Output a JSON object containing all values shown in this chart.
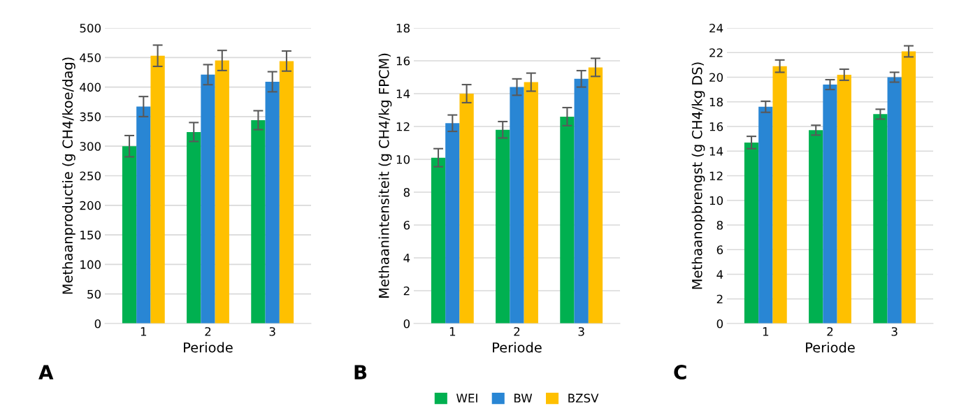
{
  "chart_data": [
    {
      "type": "bar",
      "xlabel": "Periode",
      "ylabel": "Methaanproductie (g CH4/koe/dag)",
      "categories": [
        "1",
        "2",
        "3"
      ],
      "ylim": [
        0,
        500
      ],
      "yticks": [
        0,
        50,
        100,
        150,
        200,
        250,
        300,
        350,
        400,
        450,
        500
      ],
      "grid": "y",
      "annotations": [
        "A"
      ],
      "series": [
        {
          "color": "#00b050",
          "values": [
            300,
            324,
            344
          ],
          "errors": [
            18,
            16,
            16
          ]
        },
        {
          "color": "#2986d4",
          "values": [
            367,
            421,
            409
          ],
          "errors": [
            17,
            17,
            17
          ]
        },
        {
          "color": "#ffc000",
          "values": [
            453,
            445,
            444
          ],
          "errors": [
            18,
            17,
            17
          ]
        }
      ]
    },
    {
      "type": "bar",
      "xlabel": "Periode",
      "ylabel": "Methaanintensiteit (g CH4/kg FPCM)",
      "categories": [
        "1",
        "2",
        "3"
      ],
      "ylim": [
        0,
        18
      ],
      "yticks": [
        0,
        2,
        4,
        6,
        8,
        10,
        12,
        14,
        16,
        18
      ],
      "grid": "y",
      "legend": "bottom",
      "annotations": [
        "B"
      ],
      "series": [
        {
          "name": "WEI",
          "color": "#00b050",
          "values": [
            10.1,
            11.8,
            12.6
          ],
          "errors": [
            0.55,
            0.5,
            0.55
          ]
        },
        {
          "name": "BW",
          "color": "#2986d4",
          "values": [
            12.2,
            14.4,
            14.9
          ],
          "errors": [
            0.5,
            0.5,
            0.5
          ]
        },
        {
          "name": "BZSV",
          "color": "#ffc000",
          "values": [
            14.0,
            14.7,
            15.6
          ],
          "errors": [
            0.55,
            0.55,
            0.55
          ]
        }
      ]
    },
    {
      "type": "bar",
      "xlabel": "Periode",
      "ylabel": "Methaanopbrengst (g CH4/kg DS)",
      "categories": [
        "1",
        "2",
        "3"
      ],
      "ylim": [
        0,
        24
      ],
      "yticks": [
        0,
        2,
        4,
        6,
        8,
        10,
        12,
        14,
        16,
        18,
        20,
        22,
        24
      ],
      "grid": "y",
      "annotations": [
        "C"
      ],
      "series": [
        {
          "color": "#00b050",
          "values": [
            14.7,
            15.7,
            17.0
          ],
          "errors": [
            0.5,
            0.4,
            0.4
          ]
        },
        {
          "color": "#2986d4",
          "values": [
            17.6,
            19.4,
            20.0
          ],
          "errors": [
            0.45,
            0.4,
            0.4
          ]
        },
        {
          "color": "#ffc000",
          "values": [
            20.9,
            20.2,
            22.1
          ],
          "errors": [
            0.5,
            0.45,
            0.45
          ]
        }
      ]
    }
  ]
}
